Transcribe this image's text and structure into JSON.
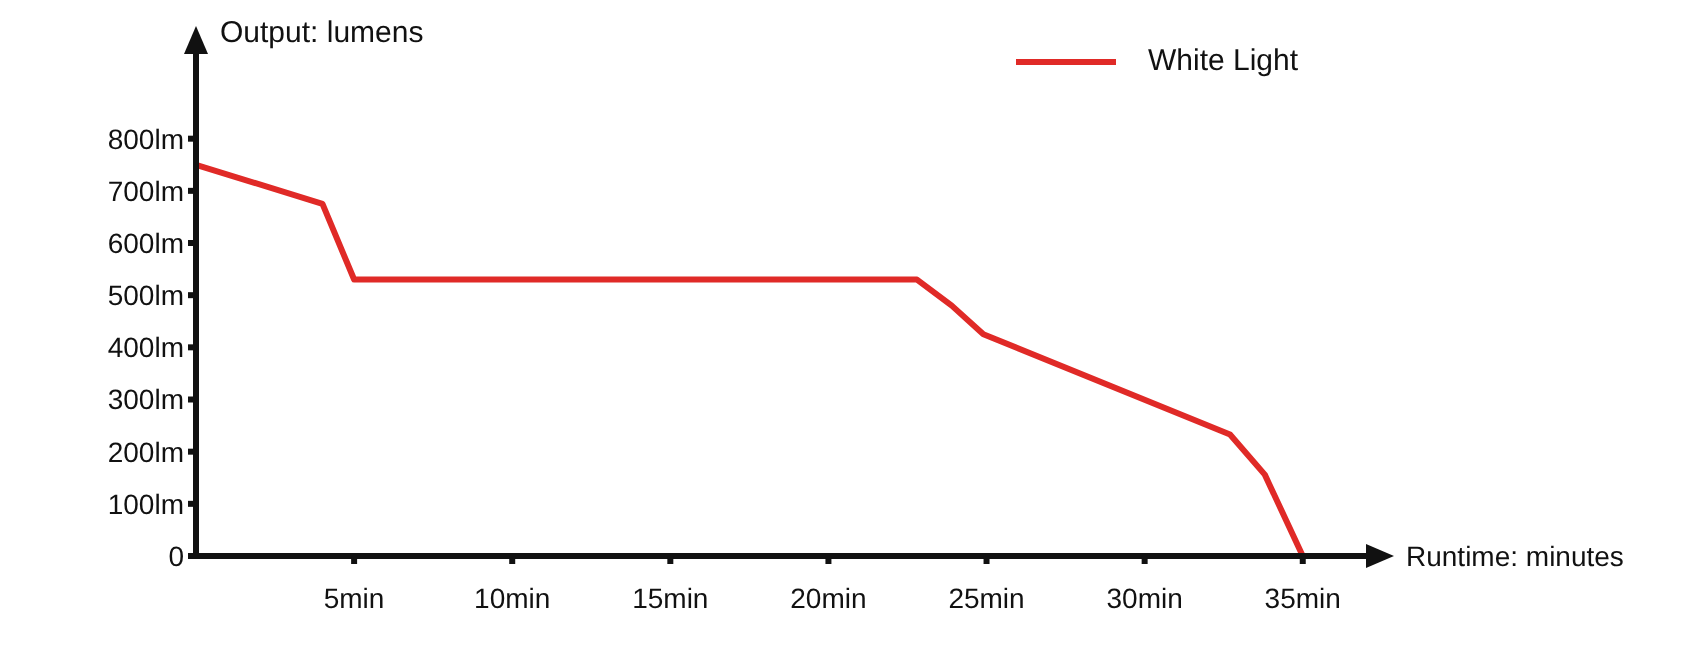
{
  "chart_data": {
    "type": "line",
    "xlabel": "Runtime: minutes",
    "ylabel": "Output: lumens",
    "xlim": [
      0,
      37
    ],
    "ylim": [
      0,
      970
    ],
    "xticks": [
      {
        "value": 5,
        "label": "5min"
      },
      {
        "value": 10,
        "label": "10min"
      },
      {
        "value": 15,
        "label": "15min"
      },
      {
        "value": 20,
        "label": "20min"
      },
      {
        "value": 25,
        "label": "25min"
      },
      {
        "value": 30,
        "label": "30min"
      },
      {
        "value": 35,
        "label": "35min"
      }
    ],
    "yticks": [
      0,
      {
        "value": 100,
        "label": "100lm"
      },
      {
        "value": 200,
        "label": "200lm"
      },
      {
        "value": 300,
        "label": "300lm"
      },
      {
        "value": 400,
        "label": "400lm"
      },
      {
        "value": 500,
        "label": "500lm"
      },
      {
        "value": 600,
        "label": "600lm"
      },
      {
        "value": 700,
        "label": "700lm"
      },
      {
        "value": 800,
        "label": "800lm"
      }
    ],
    "grid": false,
    "legend": "top right",
    "marker": "none",
    "line_style": "solid",
    "series": [
      {
        "name": "White Light",
        "color": "#e02a27",
        "x": [
          0,
          4,
          5,
          22.8,
          23.9,
          24.9,
          32.7,
          33.8,
          35
        ],
        "values": [
          750,
          675,
          530,
          530,
          480,
          425,
          233,
          156,
          0
        ]
      }
    ]
  }
}
